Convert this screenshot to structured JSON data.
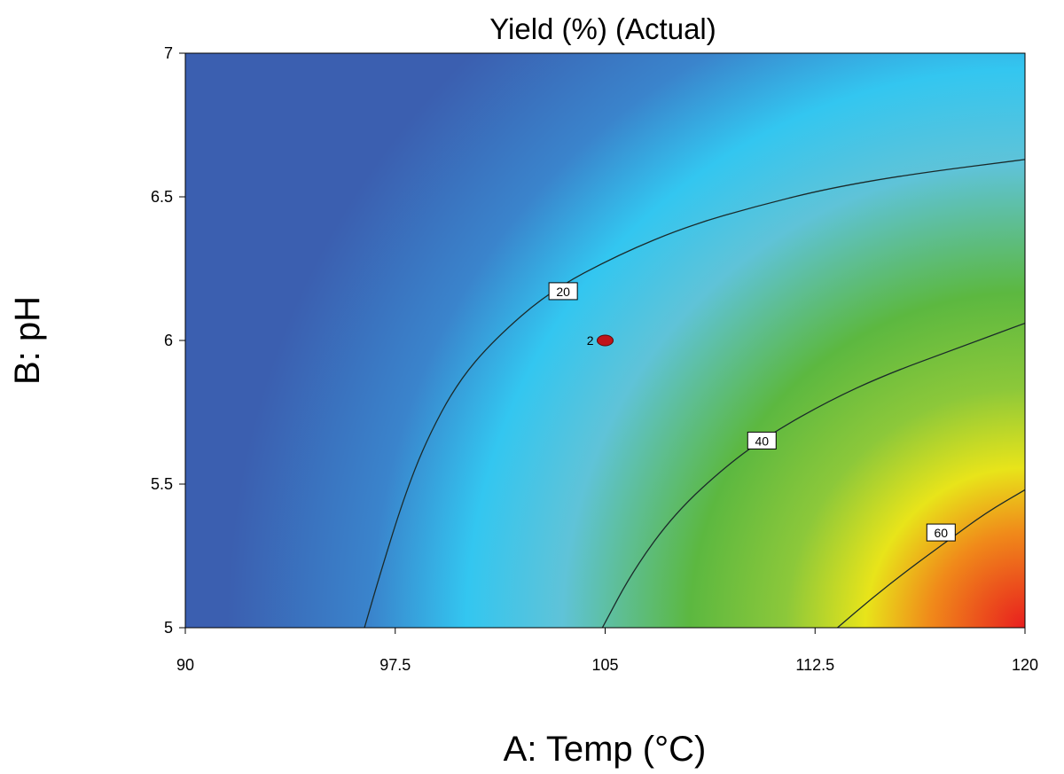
{
  "chart_data": {
    "type": "contour",
    "title": "Yield (%) (Actual)",
    "xlabel": "A: Temp (°C)",
    "ylabel": "B: pH",
    "xlim": [
      90,
      120
    ],
    "ylim": [
      5,
      7
    ],
    "x_ticks": [
      "90",
      "97.5",
      "105",
      "112.5",
      "120"
    ],
    "y_ticks": [
      "5",
      "5.5",
      "6",
      "6.5",
      "7"
    ],
    "grid": false,
    "colormap": [
      "#3b5fb0",
      "#33c6f0",
      "#5fc3d8",
      "#5cb840",
      "#e8e41a",
      "#e81e1e"
    ],
    "contours": [
      {
        "level": "20",
        "label_at": [
          103.5,
          6.17
        ],
        "points": [
          [
            96.4,
            5.0
          ],
          [
            97.0,
            5.2
          ],
          [
            97.8,
            5.45
          ],
          [
            98.6,
            5.65
          ],
          [
            99.7,
            5.85
          ],
          [
            101.0,
            6.0
          ],
          [
            103.0,
            6.17
          ],
          [
            105.5,
            6.3
          ],
          [
            108.0,
            6.4
          ],
          [
            110.5,
            6.47
          ],
          [
            113.0,
            6.53
          ],
          [
            116.0,
            6.58
          ],
          [
            120.0,
            6.63
          ]
        ]
      },
      {
        "level": "40",
        "label_at": [
          110.6,
          5.65
        ],
        "points": [
          [
            104.9,
            5.0
          ],
          [
            106.0,
            5.2
          ],
          [
            107.5,
            5.4
          ],
          [
            109.4,
            5.57
          ],
          [
            111.0,
            5.68
          ],
          [
            113.0,
            5.79
          ],
          [
            115.0,
            5.88
          ],
          [
            117.5,
            5.97
          ],
          [
            120.0,
            6.06
          ]
        ]
      },
      {
        "level": "60",
        "label_at": [
          117.0,
          5.33
        ],
        "points": [
          [
            113.3,
            5.0
          ],
          [
            114.5,
            5.1
          ],
          [
            115.8,
            5.2
          ],
          [
            117.2,
            5.3
          ],
          [
            118.6,
            5.4
          ],
          [
            120.0,
            5.48
          ]
        ]
      }
    ],
    "design_points": [
      {
        "x": 105,
        "y": 6.0,
        "label": "2"
      }
    ]
  }
}
